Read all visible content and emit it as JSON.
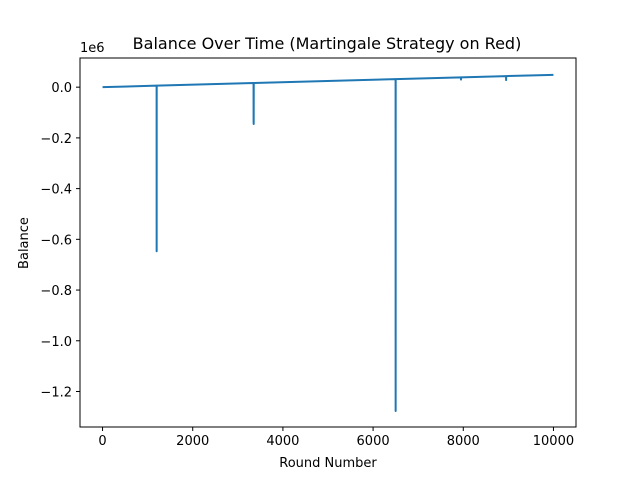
{
  "chart_data": {
    "type": "line",
    "title": "Balance Over Time (Martingale Strategy on Red)",
    "xlabel": "Round Number",
    "ylabel": "Balance",
    "y_offset_label": "1e6",
    "y_scale_factor": 1000000,
    "xlim": [
      -500,
      10500
    ],
    "ylim": [
      -1340000,
      115000
    ],
    "x_ticks": [
      0,
      2000,
      4000,
      6000,
      8000,
      10000
    ],
    "x_tick_labels": [
      "0",
      "2000",
      "4000",
      "6000",
      "8000",
      "10000"
    ],
    "y_ticks": [
      0,
      -200000,
      -400000,
      -600000,
      -800000,
      -1000000,
      -1200000
    ],
    "y_tick_labels": [
      "0.0",
      "−0.2",
      "−0.4",
      "−0.6",
      "−0.8",
      "−1.0",
      "−1.2"
    ],
    "grid": false,
    "legend": "none",
    "color": "#1f77b4",
    "series": [
      {
        "x": [
          0,
          1199,
          1200,
          1201,
          1202,
          3349,
          3350,
          3351,
          3352,
          3353,
          3354,
          6499,
          6500,
          6501,
          6502,
          7949,
          7950,
          7951,
          8949,
          8950,
          8951,
          10000
        ],
        "y": [
          0,
          5900,
          -647000,
          5900,
          6000,
          16500,
          -140000,
          -20000,
          -145000,
          16500,
          16600,
          31800,
          -1277000,
          31800,
          31900,
          38800,
          30000,
          38800,
          43600,
          28000,
          43600,
          48500
        ]
      }
    ]
  }
}
